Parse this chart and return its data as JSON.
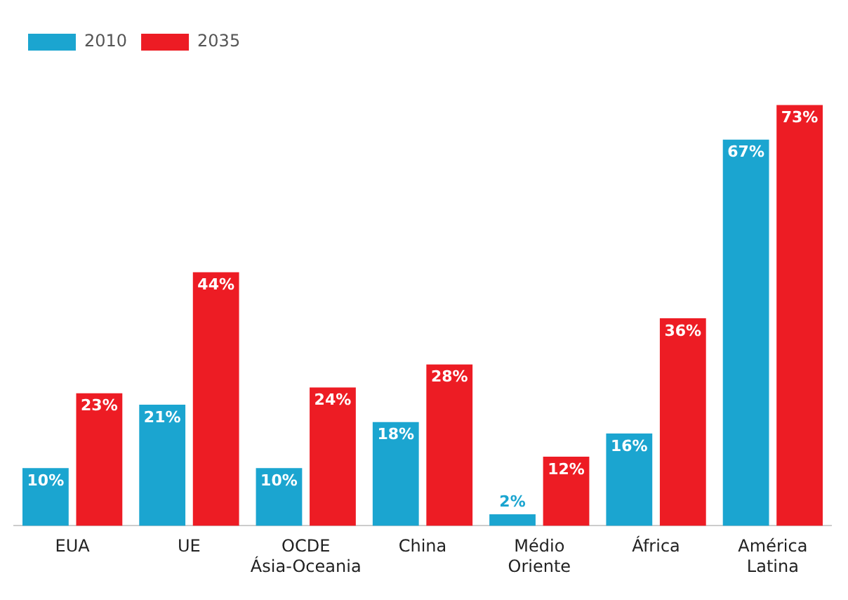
{
  "chart_data": {
    "type": "bar",
    "categories": [
      "EUA",
      "UE",
      "OCDE Ásia-Oceania",
      "China",
      "Médio Oriente",
      "África",
      "América Latina"
    ],
    "series": [
      {
        "name": "2010",
        "color": "#1ba5d0",
        "values": [
          10,
          21,
          10,
          18,
          2,
          16,
          67
        ],
        "value_labels": [
          "10%",
          "21%",
          "10%",
          "18%",
          "2%",
          "16%",
          "67%"
        ]
      },
      {
        "name": "2035",
        "color": "#ed1c24",
        "values": [
          23,
          44,
          24,
          28,
          12,
          36,
          73
        ],
        "value_labels": [
          "23%",
          "44%",
          "24%",
          "28%",
          "12%",
          "36%",
          "73%"
        ]
      }
    ],
    "legend": "top left",
    "grid": false
  }
}
